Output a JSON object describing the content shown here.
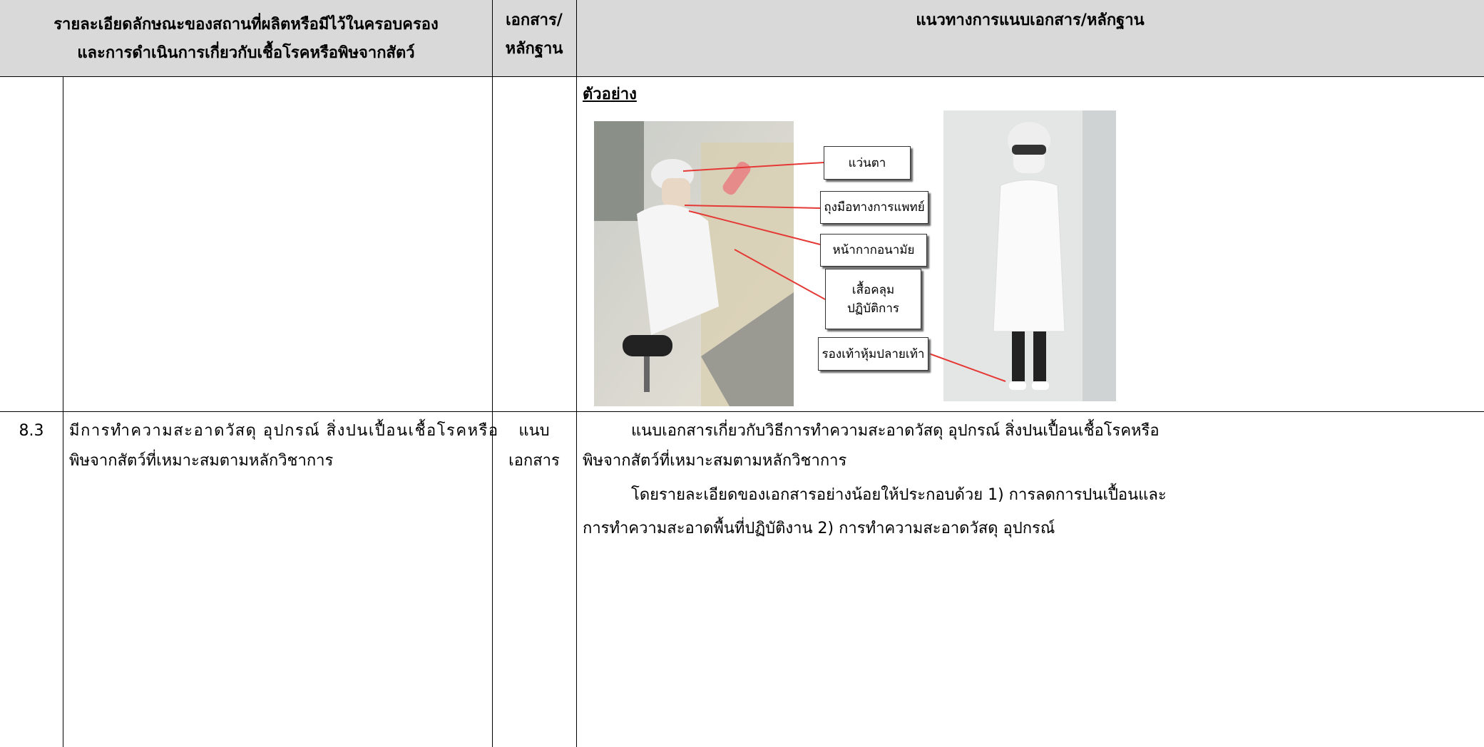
{
  "table": {
    "header": {
      "description": [
        "รายละเอียดลักษณะของสถานที่ผลิตหรือมีไว้ในครอบครอง",
        "และการดำเนินการเกี่ยวกับเชื้อโรคหรือพิษจากสัตว์"
      ],
      "evidence": [
        "เอกสาร/",
        "หลักฐาน"
      ],
      "guidance": "แนวทางการแนบเอกสาร/หลักฐาน"
    },
    "rows": [
      {
        "guidance": {
          "example_label": "ตัวอย่าง",
          "photo_labels": [
            [
              "แว่นตา"
            ],
            [
              "ถุงมือทางการแพทย์"
            ],
            [
              "หน้ากากอนามัย"
            ],
            [
              "เสื้อคลุม",
              "ปฏิบัติการ"
            ],
            [
              "รองเท้าหุ้มปลายเท้า"
            ]
          ]
        }
      },
      {
        "number": "8.3",
        "description": [
          "มีการทำความสะอาดวัสดุ อุปกรณ์ สิ่งปนเปื้อนเชื้อโรคหรือ",
          "พิษจากสัตว์ที่เหมาะสมตามหลักวิชาการ"
        ],
        "evidence": [
          "แนบ",
          "เอกสาร"
        ],
        "guidance": [
          [
            "แนบเอกสารเกี่ยวกับวิธีการทำความสะอาดวัสดุ อุปกรณ์ สิ่งปนเปื้อนเชื้อโรคหรือ",
            "พิษจากสัตว์ที่เหมาะสมตามหลักวิชาการ"
          ],
          [
            "โดยรายละเอียดของเอกสารอย่างน้อยให้ประกอบด้วย 1) การลดการปนเปื้อนและ",
            "การทำความสะอาดพื้นที่ปฏิบัติงาน 2) การทำความสะอาดวัสดุ อุปกรณ์"
          ]
        ]
      }
    ]
  }
}
